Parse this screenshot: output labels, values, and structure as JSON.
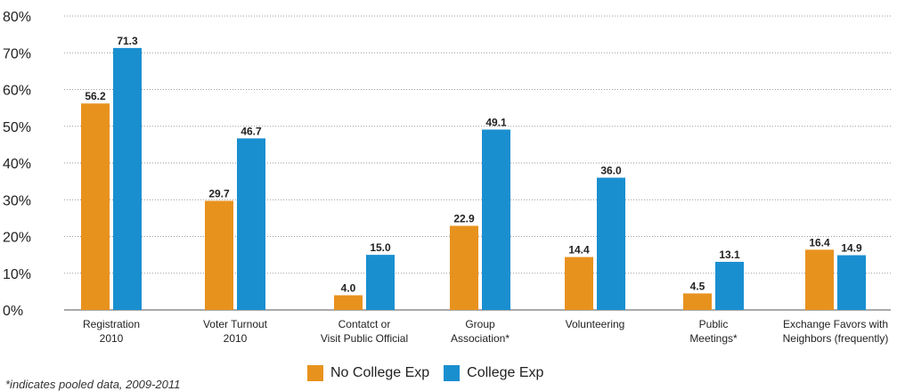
{
  "chart_data": {
    "type": "bar",
    "title": "",
    "xlabel": "",
    "ylabel": "",
    "ylim": [
      0,
      80
    ],
    "y_ticks": [
      "0%",
      "10%",
      "20%",
      "30%",
      "40%",
      "50%",
      "60%",
      "70%",
      "80%"
    ],
    "grid": "horizontal dotted",
    "categories": [
      [
        "Registration",
        "2010"
      ],
      [
        "Voter Turnout",
        "2010"
      ],
      [
        "Contatct or",
        "Visit Public Official"
      ],
      [
        "Group",
        "Association*"
      ],
      [
        "Volunteering"
      ],
      [
        "Public",
        "Meetings*"
      ],
      [
        "Exchange Favors with",
        "Neighbors (frequently)"
      ]
    ],
    "series": [
      {
        "name": "No College Exp",
        "color": "#E8921E",
        "values": [
          56.2,
          29.7,
          4.0,
          22.9,
          14.4,
          4.5,
          16.4
        ]
      },
      {
        "name": "College Exp",
        "color": "#1A8FD0",
        "values": [
          71.3,
          46.7,
          15.0,
          49.1,
          36.0,
          13.1,
          14.9
        ]
      }
    ],
    "legend_position": "bottom-center",
    "footnote": "*indicates pooled data, 2009-2011"
  }
}
